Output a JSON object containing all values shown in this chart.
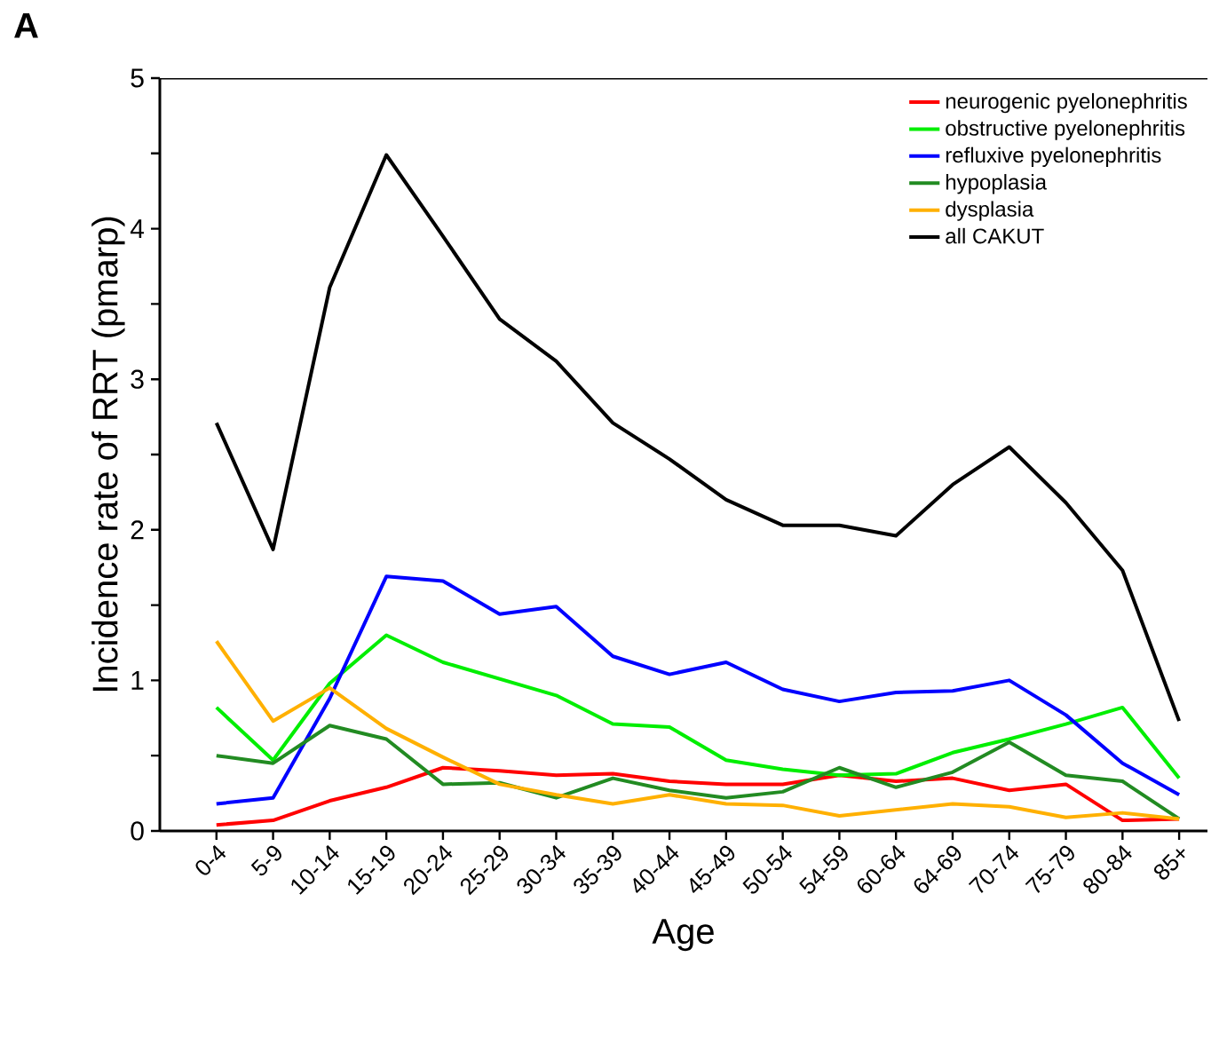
{
  "chart_data": {
    "type": "line",
    "annotations": [
      "A"
    ],
    "xlabel": "Age",
    "ylabel": "Incidence rate of RRT (pmarp)",
    "categories": [
      "0-4",
      "5-9",
      "10-14",
      "15-19",
      "20-24",
      "25-29",
      "30-34",
      "35-39",
      "40-44",
      "45-49",
      "50-54",
      "54-59",
      "60-64",
      "64-69",
      "70-74",
      "75-79",
      "80-84",
      "85+"
    ],
    "ylim": [
      0,
      5
    ],
    "yticks": [
      0,
      {
        "value": 0.5,
        "label": null
      },
      1,
      {
        "value": 1.5,
        "label": null
      },
      2,
      {
        "value": 2.5,
        "label": null
      },
      3,
      {
        "value": 3.5,
        "label": null
      },
      4,
      {
        "value": 4.5,
        "label": null
      },
      5
    ],
    "grid": false,
    "legend": "top right",
    "marker": "none",
    "line_style": "solid",
    "series": [
      {
        "name": "neurogenic pyelonephritis",
        "color": "#ff0000",
        "values": [
          0.04,
          0.07,
          0.2,
          0.29,
          0.42,
          0.4,
          0.37,
          0.38,
          0.33,
          0.31,
          0.31,
          0.37,
          0.33,
          0.35,
          0.27,
          0.31,
          0.07,
          0.08
        ]
      },
      {
        "name": "obstructive pyelonephritis",
        "color": "#00ee00",
        "values": [
          0.82,
          0.47,
          0.98,
          1.3,
          1.12,
          1.01,
          0.9,
          0.71,
          0.69,
          0.47,
          0.41,
          0.37,
          0.38,
          0.52,
          0.61,
          0.71,
          0.82,
          0.35
        ]
      },
      {
        "name": "refluxive pyelonephritis",
        "color": "#0000ff",
        "values": [
          0.18,
          0.22,
          0.88,
          1.69,
          1.66,
          1.44,
          1.49,
          1.16,
          1.04,
          1.12,
          0.94,
          0.86,
          0.92,
          0.93,
          1.0,
          0.77,
          0.45,
          0.24
        ]
      },
      {
        "name": "hypoplasia",
        "color": "#228b22",
        "values": [
          0.5,
          0.45,
          0.7,
          0.61,
          0.31,
          0.32,
          0.22,
          0.35,
          0.27,
          0.22,
          0.26,
          0.42,
          0.29,
          0.39,
          0.59,
          0.37,
          0.33,
          0.08
        ]
      },
      {
        "name": "dysplasia",
        "color": "#ffb000",
        "values": [
          1.26,
          0.73,
          0.95,
          0.68,
          0.49,
          0.31,
          0.24,
          0.18,
          0.24,
          0.18,
          0.17,
          0.1,
          0.14,
          0.18,
          0.16,
          0.09,
          0.12,
          0.08
        ]
      },
      {
        "name": "all CAKUT",
        "color": "#000000",
        "values": [
          2.71,
          1.87,
          3.61,
          4.49,
          3.95,
          3.4,
          3.12,
          2.71,
          2.47,
          2.2,
          2.03,
          2.03,
          1.96,
          2.3,
          2.55,
          2.18,
          1.73,
          0.73
        ]
      }
    ]
  }
}
